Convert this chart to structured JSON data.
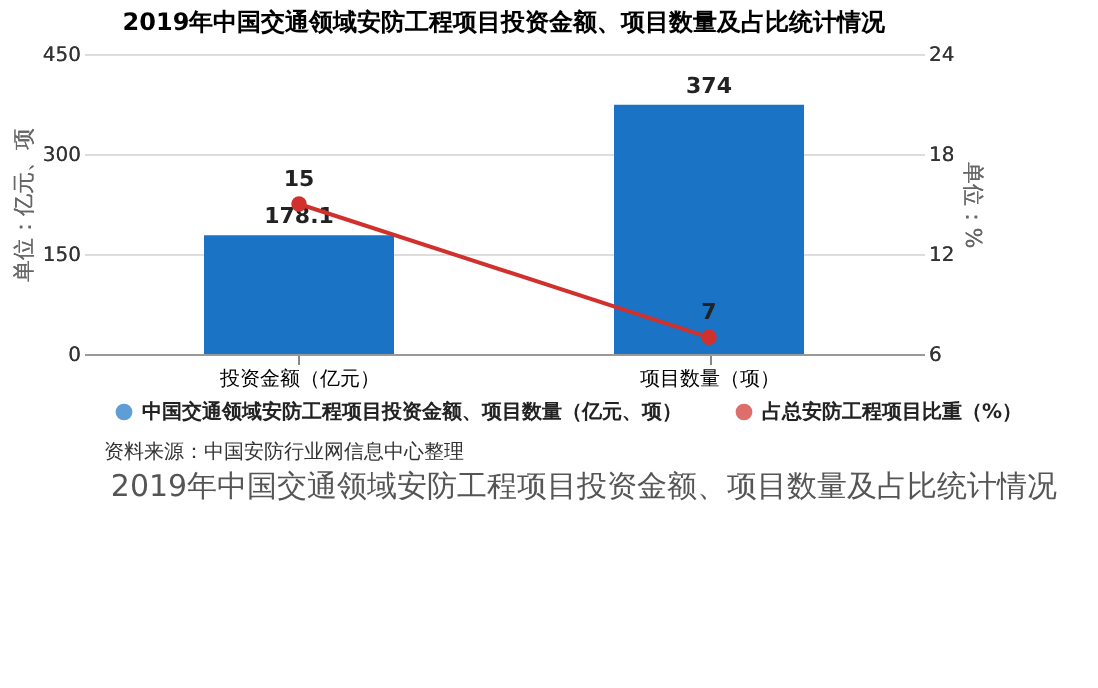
{
  "chart_data": {
    "type": "bar",
    "title": "2019年中国交通领域安防工程项目投资金额、项目数量及占比统计情况",
    "categories": [
      "投资金额（亿元）",
      "项目数量（项）"
    ],
    "series": [
      {
        "name": "中国交通领域安防工程项目投资金额、项目数量（亿元、项）",
        "color": "#1a73c4",
        "values": [
          178.1,
          374
        ]
      },
      {
        "name": "占总安防工程项目比重（%）",
        "type": "line",
        "axis": "y2",
        "color": "#d0312d",
        "marker": "circle",
        "values": [
          15,
          7
        ]
      }
    ],
    "ylabel": "单位：亿元、项",
    "y2label": "单位：%",
    "ylim": [
      0,
      450
    ],
    "yticks": [
      0,
      150,
      300,
      450
    ],
    "y2lim": [
      6,
      24
    ],
    "y2ticks": [
      6,
      12,
      18,
      24
    ],
    "grid": "y",
    "legend": "bottom",
    "data_labels": true,
    "annotations": [
      "资料来源：中国安防行业网信息中心整理",
      "2019年中国交通领域安防工程项目投资金额、项目数量及占比统计情况"
    ]
  }
}
